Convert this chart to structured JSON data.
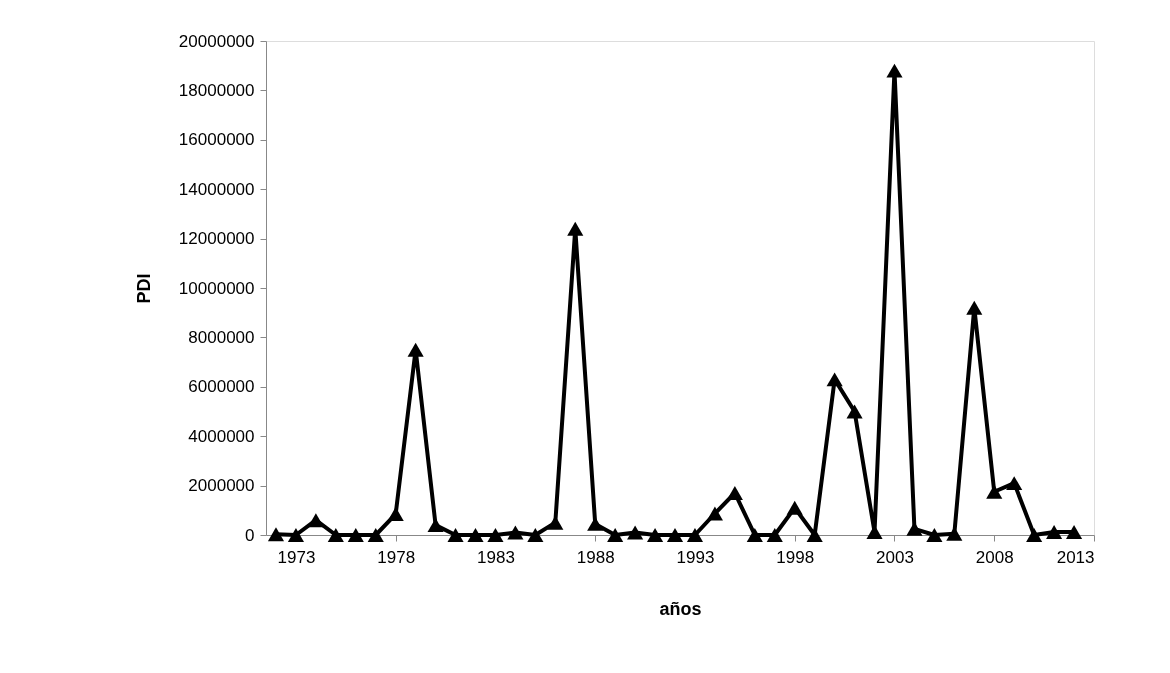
{
  "chart_data": {
    "type": "line",
    "xlabel": "años",
    "ylabel": "PDI",
    "x": [
      1972,
      1973,
      1974,
      1975,
      1976,
      1977,
      1978,
      1979,
      1980,
      1981,
      1982,
      1983,
      1984,
      1985,
      1986,
      1987,
      1988,
      1989,
      1990,
      1991,
      1992,
      1993,
      1994,
      1995,
      1996,
      1997,
      1998,
      1999,
      2000,
      2001,
      2002,
      2003,
      2004,
      2005,
      2006,
      2007,
      2008,
      2009,
      2010,
      2011,
      2012
    ],
    "series": [
      {
        "color": "#000000",
        "values": [
          30000,
          0,
          600000,
          0,
          0,
          0,
          850000,
          7500000,
          400000,
          0,
          0,
          0,
          100000,
          0,
          500000,
          12400000,
          450000,
          0,
          100000,
          0,
          0,
          0,
          870000,
          1700000,
          0,
          0,
          1100000,
          0,
          6300000,
          5000000,
          120000,
          18800000,
          250000,
          0,
          50000,
          9200000,
          1750000,
          2100000,
          0,
          120000,
          120000
        ]
      }
    ],
    "xlim": [
      1971.5,
      2013
    ],
    "xticks": [
      1973,
      1978,
      1983,
      1988,
      1993,
      1998,
      2003,
      2008,
      2013
    ],
    "ylim": [
      0,
      20000000
    ],
    "yticks": [
      0,
      2000000,
      4000000,
      6000000,
      8000000,
      10000000,
      12000000,
      14000000,
      16000000,
      18000000,
      20000000
    ],
    "grid": false,
    "marker": "triangle",
    "line_style": "solid"
  }
}
